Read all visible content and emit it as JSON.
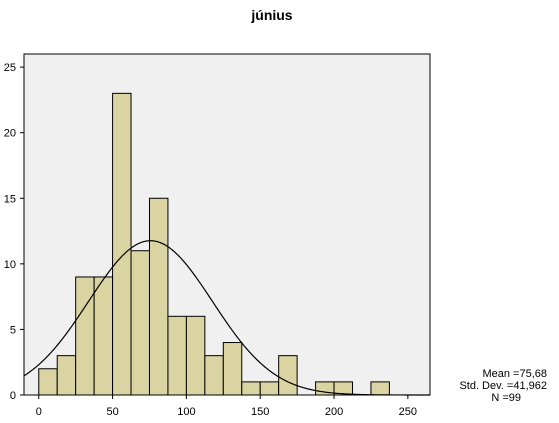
{
  "chart_data": {
    "type": "bar",
    "title": "június",
    "bin_width": 12.5,
    "bins": [
      {
        "start": 0,
        "count": 2
      },
      {
        "start": 12.5,
        "count": 3
      },
      {
        "start": 25,
        "count": 9
      },
      {
        "start": 37.5,
        "count": 9
      },
      {
        "start": 50,
        "count": 23
      },
      {
        "start": 62.5,
        "count": 11
      },
      {
        "start": 75,
        "count": 15
      },
      {
        "start": 87.5,
        "count": 6
      },
      {
        "start": 100,
        "count": 6
      },
      {
        "start": 112.5,
        "count": 3
      },
      {
        "start": 125,
        "count": 4
      },
      {
        "start": 137.5,
        "count": 1
      },
      {
        "start": 150,
        "count": 1
      },
      {
        "start": 162.5,
        "count": 3
      },
      {
        "start": 175,
        "count": 0
      },
      {
        "start": 187.5,
        "count": 1
      },
      {
        "start": 200,
        "count": 1
      },
      {
        "start": 212.5,
        "count": 0
      },
      {
        "start": 225,
        "count": 1
      }
    ],
    "xlim": [
      -10,
      265
    ],
    "ylim": [
      0,
      26
    ],
    "x_ticks": [
      0,
      50,
      100,
      150,
      200,
      250
    ],
    "y_ticks": [
      0,
      5,
      10,
      15,
      20,
      25
    ],
    "normal_curve": {
      "mean": 75.68,
      "std": 41.962,
      "n": 99
    },
    "stats_labels": {
      "mean": "Mean =75,68",
      "std": "Std. Dev. =41,962",
      "n": "N =99"
    },
    "colors": {
      "bar_fill": "#d9d4a1",
      "bar_stroke": "#000000",
      "plot_bg": "#f0f0f0",
      "curve": "#000000"
    }
  }
}
